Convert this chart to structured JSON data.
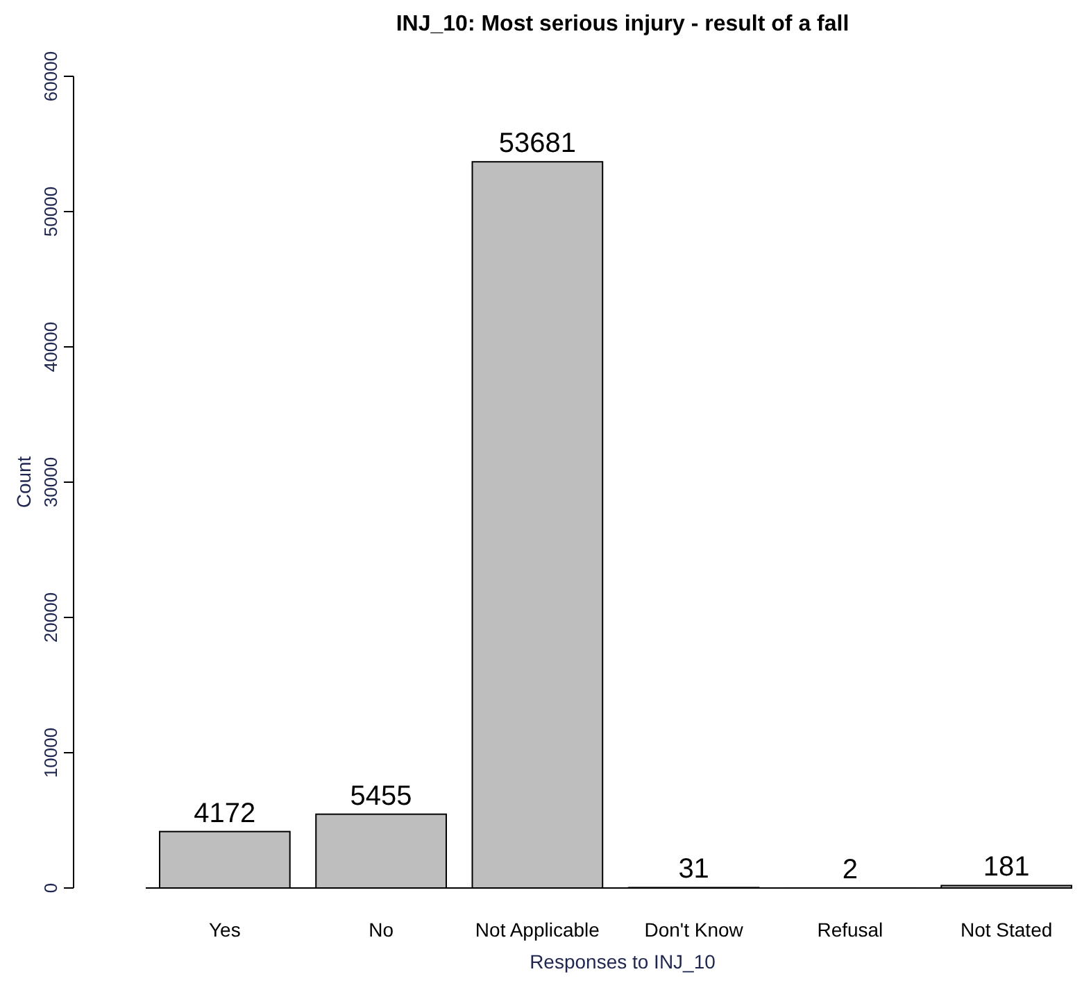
{
  "chart_data": {
    "type": "bar",
    "title": "INJ_10: Most serious injury - result of a fall",
    "xlabel": "Responses to INJ_10",
    "ylabel": "Count",
    "categories": [
      "Yes",
      "No",
      "Not Applicable",
      "Don't Know",
      "Refusal",
      "Not Stated"
    ],
    "values": [
      4172,
      5455,
      53681,
      31,
      2,
      181
    ],
    "color": "#bebebe",
    "data_labels": true,
    "ylim": [
      0,
      60000
    ],
    "yticks": [
      0,
      10000,
      20000,
      30000,
      40000,
      50000,
      60000
    ],
    "grid": false
  }
}
